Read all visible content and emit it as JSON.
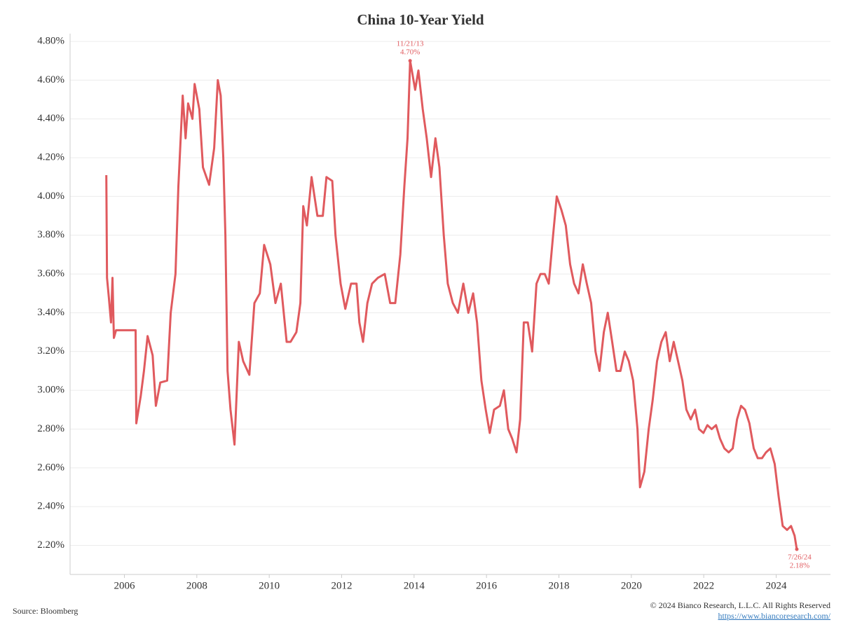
{
  "chart_data": {
    "type": "line",
    "title": "China 10-Year Yield",
    "color": "#e05a5e",
    "xlim": [
      2004.5,
      2025.5
    ],
    "xticks": [
      2006,
      2008,
      2010,
      2012,
      2014,
      2016,
      2018,
      2020,
      2022,
      2024
    ],
    "ylim": [
      2.05,
      4.84
    ],
    "yticks": [
      {
        "value": 2.2,
        "label": "2.20%"
      },
      {
        "value": 2.4,
        "label": "2.40%"
      },
      {
        "value": 2.6,
        "label": "2.60%"
      },
      {
        "value": 2.8,
        "label": "2.80%"
      },
      {
        "value": 3.0,
        "label": "3.00%"
      },
      {
        "value": 3.2,
        "label": "3.20%"
      },
      {
        "value": 3.4,
        "label": "3.40%"
      },
      {
        "value": 3.6,
        "label": "3.60%"
      },
      {
        "value": 3.8,
        "label": "3.80%"
      },
      {
        "value": 4.0,
        "label": "4.00%"
      },
      {
        "value": 4.2,
        "label": "4.20%"
      },
      {
        "value": 4.4,
        "label": "4.40%"
      },
      {
        "value": 4.6,
        "label": "4.60%"
      },
      {
        "value": 4.8,
        "label": "4.80%"
      }
    ],
    "grid": true,
    "x": [
      2005.5,
      2005.52,
      2005.57,
      2005.63,
      2005.67,
      2005.71,
      2005.77,
      2006.31,
      2006.33,
      2006.45,
      2006.54,
      2006.64,
      2006.78,
      2006.87,
      2006.99,
      2007.18,
      2007.28,
      2007.41,
      2007.49,
      2007.61,
      2007.69,
      2007.76,
      2007.88,
      2007.94,
      2008.07,
      2008.17,
      2008.34,
      2008.48,
      2008.58,
      2008.66,
      2008.73,
      2008.79,
      2008.85,
      2008.93,
      2009.04,
      2009.16,
      2009.28,
      2009.45,
      2009.59,
      2009.74,
      2009.86,
      2010.03,
      2010.17,
      2010.32,
      2010.48,
      2010.59,
      2010.75,
      2010.86,
      2010.94,
      2011.04,
      2011.17,
      2011.33,
      2011.48,
      2011.58,
      2011.74,
      2011.83,
      2011.97,
      2012.1,
      2012.26,
      2012.41,
      2012.49,
      2012.59,
      2012.71,
      2012.84,
      2013.0,
      2013.19,
      2013.34,
      2013.48,
      2013.62,
      2013.73,
      2013.82,
      2013.89,
      2014.03,
      2014.12,
      2014.24,
      2014.35,
      2014.47,
      2014.59,
      2014.7,
      2014.82,
      2014.93,
      2015.07,
      2015.21,
      2015.36,
      2015.5,
      2015.63,
      2015.74,
      2015.86,
      2015.98,
      2016.09,
      2016.21,
      2016.37,
      2016.48,
      2016.6,
      2016.71,
      2016.83,
      2016.93,
      2017.03,
      2017.14,
      2017.26,
      2017.38,
      2017.49,
      2017.61,
      2017.72,
      2017.84,
      2017.94,
      2018.07,
      2018.19,
      2018.31,
      2018.42,
      2018.54,
      2018.66,
      2018.77,
      2018.89,
      2019.01,
      2019.12,
      2019.24,
      2019.35,
      2019.47,
      2019.59,
      2019.7,
      2019.82,
      2019.93,
      2020.05,
      2020.17,
      2020.24,
      2020.36,
      2020.48,
      2020.59,
      2020.71,
      2020.83,
      2020.95,
      2021.06,
      2021.17,
      2021.29,
      2021.41,
      2021.52,
      2021.64,
      2021.76,
      2021.87,
      2021.99,
      2022.1,
      2022.22,
      2022.34,
      2022.45,
      2022.57,
      2022.69,
      2022.8,
      2022.92,
      2023.03,
      2023.14,
      2023.26,
      2023.38,
      2023.49,
      2023.61,
      2023.72,
      2023.84,
      2023.96,
      2024.07,
      2024.18,
      2024.3,
      2024.41,
      2024.51,
      2024.57
    ],
    "values": [
      4.11,
      3.58,
      3.48,
      3.35,
      3.58,
      3.27,
      3.31,
      3.31,
      2.83,
      2.97,
      3.1,
      3.28,
      3.18,
      2.92,
      3.04,
      3.05,
      3.4,
      3.6,
      4.05,
      4.52,
      4.3,
      4.48,
      4.4,
      4.58,
      4.45,
      4.15,
      4.06,
      4.25,
      4.6,
      4.52,
      4.2,
      3.8,
      3.1,
      2.9,
      2.72,
      3.25,
      3.15,
      3.08,
      3.45,
      3.5,
      3.75,
      3.65,
      3.45,
      3.55,
      3.25,
      3.25,
      3.3,
      3.45,
      3.95,
      3.85,
      4.1,
      3.9,
      3.9,
      4.1,
      4.08,
      3.8,
      3.55,
      3.42,
      3.55,
      3.55,
      3.35,
      3.25,
      3.45,
      3.55,
      3.58,
      3.6,
      3.45,
      3.45,
      3.7,
      4.05,
      4.3,
      4.7,
      4.55,
      4.65,
      4.45,
      4.3,
      4.1,
      4.3,
      4.15,
      3.8,
      3.55,
      3.45,
      3.4,
      3.55,
      3.4,
      3.5,
      3.35,
      3.05,
      2.9,
      2.78,
      2.9,
      2.92,
      3.0,
      2.8,
      2.75,
      2.68,
      2.85,
      3.35,
      3.35,
      3.2,
      3.55,
      3.6,
      3.6,
      3.55,
      3.8,
      4.0,
      3.93,
      3.85,
      3.65,
      3.55,
      3.5,
      3.65,
      3.55,
      3.45,
      3.2,
      3.1,
      3.3,
      3.4,
      3.25,
      3.1,
      3.1,
      3.2,
      3.15,
      3.05,
      2.8,
      2.5,
      2.58,
      2.8,
      2.95,
      3.15,
      3.25,
      3.3,
      3.15,
      3.25,
      3.15,
      3.05,
      2.9,
      2.85,
      2.9,
      2.8,
      2.78,
      2.82,
      2.8,
      2.82,
      2.75,
      2.7,
      2.68,
      2.7,
      2.85,
      2.92,
      2.9,
      2.83,
      2.7,
      2.65,
      2.65,
      2.68,
      2.7,
      2.62,
      2.45,
      2.3,
      2.28,
      2.3,
      2.25,
      2.18
    ],
    "annotations": [
      {
        "text": "11/21/13",
        "x": 2013.89,
        "value": 4.7,
        "value_label": "4.70%"
      },
      {
        "text": "7/26/24",
        "x": 2024.57,
        "value": 2.18,
        "value_label": "2.18%"
      }
    ],
    "source": "Source: Bloomberg",
    "copyright": "© 2024 Bianco Research, L.L.C. All Rights Reserved",
    "url": "https://www.biancoresearch.com/"
  }
}
